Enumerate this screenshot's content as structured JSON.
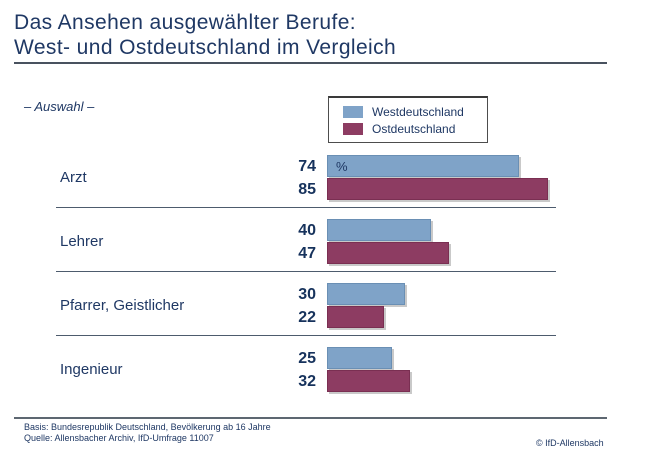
{
  "title": {
    "line1": "Das Ansehen ausgewählter Berufe:",
    "line2": "West- und Ostdeutschland im Vergleich"
  },
  "subtitle": "– Auswahl –",
  "legend": {
    "west_label": "Westdeutschland",
    "ost_label": "Ostdeutschland"
  },
  "unit_label": "%",
  "colors": {
    "west": "#7fa3c8",
    "ost": "#8d3c62",
    "text_navy": "#1f3864"
  },
  "chart_data": {
    "type": "bar",
    "orientation": "horizontal",
    "title": "Das Ansehen ausgewählter Berufe: West- und Ostdeutschland im Vergleich",
    "subtitle": "– Auswahl –",
    "unit": "%",
    "xlim": [
      0,
      100
    ],
    "grid": false,
    "legend_position": "top-right",
    "categories": [
      "Arzt",
      "Lehrer",
      "Pfarrer, Geistlicher",
      "Ingenieur"
    ],
    "series": [
      {
        "name": "Westdeutschland",
        "color": "#7fa3c8",
        "values": [
          74,
          40,
          30,
          25
        ]
      },
      {
        "name": "Ostdeutschland",
        "color": "#8d3c62",
        "values": [
          85,
          47,
          22,
          32
        ]
      }
    ]
  },
  "footer": {
    "basis": "Basis: Bundesrepublik Deutschland, Bevölkerung ab 16 Jahre",
    "quelle": "Quelle: Allensbacher Archiv, IfD-Umfrage 11007",
    "copyright": "© IfD-Allensbach"
  }
}
